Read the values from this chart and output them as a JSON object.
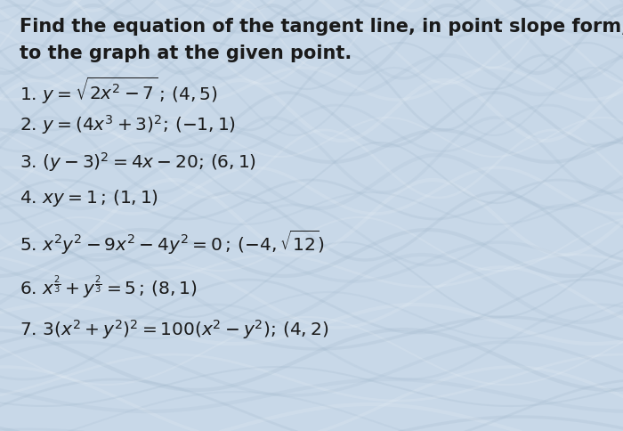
{
  "background_color": "#c8d8e8",
  "text_color": "#1a1a1a",
  "title_line1": "Find the equation of the tangent line, in point slope form,",
  "title_line2": "to the graph at the given point.",
  "items": [
    {
      "latex": "1. $y = \\sqrt{2x^2 - 7}\\,;\\,(4,5)$"
    },
    {
      "latex": "2. $y = (4x^3 + 3)^2;\\,(-1,1)$"
    },
    {
      "latex": "3. $(y - 3)^2 = 4x - 20;\\,(6,1)$"
    },
    {
      "latex": "4. $xy = 1\\,;\\,(1,1)$"
    },
    {
      "latex": "5. $x^2y^2 - 9x^2 - 4y^2 = 0\\,;\\,(-4,\\sqrt{12})$"
    },
    {
      "latex": "6. $x^{\\frac{2}{3}} + y^{\\frac{2}{3}} = 5\\,;\\,(8,1)$"
    },
    {
      "latex": "7. $3(x^2 + y^2)^2 = 100(x^2 - y^2);\\,(4,2)$"
    }
  ],
  "title_fontsize": 15.0,
  "item_fontsize": 14.5,
  "fig_width": 7.0,
  "fig_height": 4.85,
  "dpi": 100
}
